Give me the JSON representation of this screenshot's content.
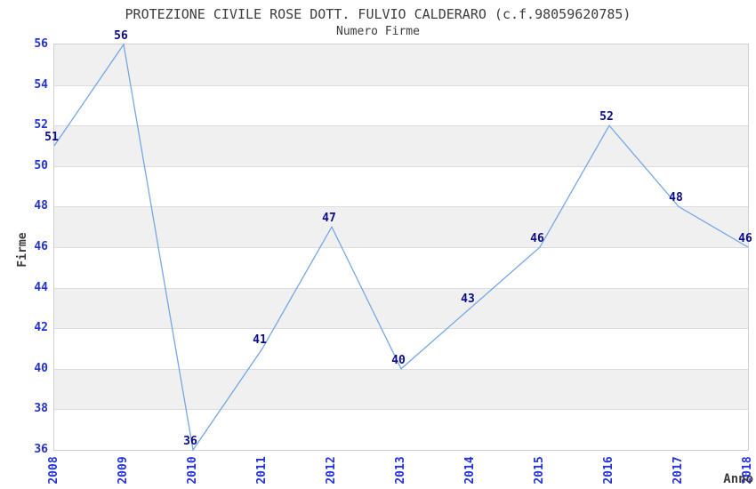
{
  "chart_data": {
    "type": "line",
    "title": "PROTEZIONE CIVILE ROSE DOTT. FULVIO CALDERARO (c.f.98059620785)",
    "subtitle": "Numero Firme",
    "xlabel": "Anno",
    "ylabel": "Firme",
    "categories": [
      "2008",
      "2009",
      "2010",
      "2011",
      "2012",
      "2013",
      "2014",
      "2015",
      "2016",
      "2017",
      "2018"
    ],
    "values": [
      51,
      56,
      36,
      41,
      47,
      40,
      43,
      46,
      52,
      48,
      46
    ],
    "ylim": [
      36,
      56
    ],
    "ytick_step": 2,
    "grid": "horizontal-bands-alternating",
    "legend": "none",
    "colors": {
      "line": "#74a8e4",
      "tick_label": "#2232d6",
      "point_label": "#0b0b8a",
      "band_gray": "#f0f0f0",
      "gridline": "#dcdcdc",
      "plot_border": "#d0d0d0",
      "text": "#3c3c3c",
      "background": "#ffffff"
    }
  }
}
